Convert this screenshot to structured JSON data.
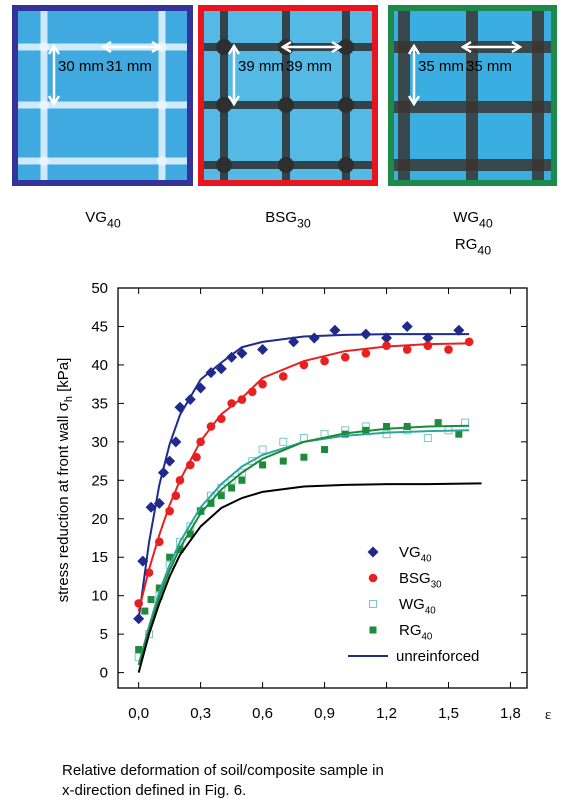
{
  "photos": [
    {
      "border_color": "#33339a",
      "background": "#3fa9e0",
      "strand_color": "#e8f4fb",
      "labels": [
        "30 mm",
        "31 mm"
      ],
      "caption": [
        {
          "base": "VG",
          "sub": "40"
        }
      ]
    },
    {
      "border_color": "#e8141e",
      "background": "#55b9e6",
      "strand_color": "#2e2e2e",
      "labels": [
        "39 mm",
        "39 mm"
      ],
      "caption": [
        {
          "base": "BSG",
          "sub": "30"
        }
      ]
    },
    {
      "border_color": "#1e8a4a",
      "background": "#3aaee0",
      "strand_color": "#3a3632",
      "labels": [
        "35 mm",
        "35 mm"
      ],
      "caption": [
        {
          "base": "WG",
          "sub": "40"
        },
        {
          "base": "RG",
          "sub": "40"
        }
      ]
    }
  ],
  "chart_data": {
    "type": "scatter",
    "x_label": "ε",
    "y_label": {
      "text": "stress reduction at front wall σ",
      "sub": "h",
      "after": " [kPa]"
    },
    "xlim": [
      -0.1,
      1.88
    ],
    "ylim": [
      -2,
      50
    ],
    "xticks": [
      {
        "value": 0,
        "label": "0,0"
      },
      {
        "value": 0.3,
        "label": "0,3"
      },
      {
        "value": 0.6,
        "label": "0,6"
      },
      {
        "value": 0.9,
        "label": "0,9"
      },
      {
        "value": 1.2,
        "label": "1,2"
      },
      {
        "value": 1.5,
        "label": "1,5"
      },
      {
        "value": 1.8,
        "label": "1,8"
      }
    ],
    "yticks": [
      0,
      5,
      10,
      15,
      20,
      25,
      30,
      35,
      40,
      45,
      50
    ],
    "series": [
      {
        "name": "VG",
        "subscript": "40",
        "marker": "diamond",
        "color": "#1f2a8c",
        "x": [
          0,
          0.02,
          0.06,
          0.1,
          0.12,
          0.15,
          0.18,
          0.2,
          0.25,
          0.3,
          0.35,
          0.4,
          0.45,
          0.5,
          0.6,
          0.75,
          0.85,
          0.95,
          1.1,
          1.2,
          1.3,
          1.4,
          1.55
        ],
        "values": [
          7,
          14.5,
          21.5,
          22,
          26,
          27.5,
          30,
          34.5,
          35.5,
          37,
          39,
          39.5,
          41,
          41.5,
          42,
          43,
          43.5,
          44.5,
          44,
          43.5,
          45,
          43.5,
          44.5
        ]
      },
      {
        "name": "BSG",
        "subscript": "30",
        "marker": "circle",
        "color": "#e82020",
        "x": [
          0,
          0.05,
          0.1,
          0.15,
          0.18,
          0.2,
          0.25,
          0.28,
          0.3,
          0.35,
          0.4,
          0.45,
          0.5,
          0.55,
          0.6,
          0.7,
          0.8,
          0.9,
          1.0,
          1.1,
          1.2,
          1.3,
          1.4,
          1.5,
          1.6
        ],
        "values": [
          9,
          13,
          17,
          21,
          23,
          25,
          27,
          28,
          30,
          32,
          33,
          35,
          35.5,
          36.5,
          37.5,
          38.5,
          40,
          40.5,
          41,
          41.5,
          42.5,
          42,
          42.5,
          42,
          43
        ]
      },
      {
        "name": "WG",
        "subscript": "40",
        "marker": "open-square",
        "color": "#7cc8c4",
        "x": [
          0,
          0.05,
          0.1,
          0.15,
          0.2,
          0.25,
          0.3,
          0.35,
          0.4,
          0.45,
          0.5,
          0.55,
          0.6,
          0.7,
          0.8,
          0.9,
          1.0,
          1.1,
          1.2,
          1.3,
          1.4,
          1.5,
          1.58
        ],
        "values": [
          2,
          5,
          10,
          14,
          17,
          19,
          21,
          23,
          24,
          25,
          26,
          27.5,
          29,
          30,
          30.5,
          31,
          31.5,
          32,
          31,
          31.5,
          30.5,
          31.5,
          32.5
        ]
      },
      {
        "name": "RG",
        "subscript": "40",
        "marker": "square",
        "color": "#1e8a3a",
        "x": [
          0,
          0.03,
          0.06,
          0.1,
          0.15,
          0.2,
          0.25,
          0.3,
          0.35,
          0.4,
          0.45,
          0.5,
          0.6,
          0.7,
          0.8,
          0.9,
          1.0,
          1.1,
          1.2,
          1.3,
          1.45,
          1.55
        ],
        "values": [
          3,
          8,
          9.5,
          11,
          15,
          16,
          18,
          21,
          22,
          23,
          24,
          25,
          27,
          27.5,
          28,
          29,
          31,
          31.5,
          32,
          32,
          32.5,
          31
        ]
      },
      {
        "marker": "line",
        "color": "#1f2a8c",
        "x": [
          0,
          0.05,
          0.1,
          0.15,
          0.2,
          0.3,
          0.4,
          0.5,
          0.6,
          0.8,
          1.0,
          1.2,
          1.4,
          1.6
        ],
        "values": [
          7,
          16.9,
          24.4,
          29.7,
          33.5,
          38.1,
          40.3,
          42.3,
          43,
          43.7,
          43.9,
          44,
          44,
          44
        ]
      },
      {
        "marker": "line",
        "color": "#e82020",
        "x": [
          0,
          0.05,
          0.1,
          0.15,
          0.2,
          0.3,
          0.4,
          0.5,
          0.6,
          0.8,
          1.0,
          1.2,
          1.4,
          1.6
        ],
        "values": [
          8,
          13.4,
          17.9,
          21.8,
          25,
          30.1,
          33.6,
          35.7,
          38.3,
          40.5,
          41.8,
          42.4,
          42.7,
          42.8
        ]
      },
      {
        "marker": "line",
        "color": "#2aa6a0",
        "x": [
          0,
          0.05,
          0.1,
          0.15,
          0.2,
          0.3,
          0.4,
          0.5,
          0.6,
          0.8,
          1.0,
          1.2,
          1.4,
          1.6
        ],
        "values": [
          1,
          6,
          10.5,
          14,
          17,
          21.5,
          24.5,
          26.8,
          28.3,
          30,
          30.8,
          31.2,
          31.4,
          31.5
        ]
      },
      {
        "marker": "line",
        "color": "#1e8a3a",
        "x": [
          0,
          0.05,
          0.1,
          0.15,
          0.2,
          0.3,
          0.4,
          0.5,
          0.6,
          0.8,
          1.0,
          1.2,
          1.4,
          1.6
        ],
        "values": [
          1,
          5.5,
          9.8,
          13.3,
          16.2,
          20.7,
          23.8,
          26,
          27.8,
          30,
          31.1,
          31.7,
          32,
          32.1
        ]
      },
      {
        "name": "unreinforced",
        "marker": "line",
        "color": "#000000",
        "legend_color": "#1f2a8c",
        "x": [
          0,
          0.05,
          0.1,
          0.15,
          0.2,
          0.3,
          0.4,
          0.5,
          0.6,
          0.8,
          1.0,
          1.2,
          1.4,
          1.66
        ],
        "values": [
          0,
          5,
          9,
          12.5,
          15.3,
          19,
          21.4,
          22.7,
          23.5,
          24.2,
          24.4,
          24.5,
          24.5,
          24.6
        ]
      }
    ],
    "caption": [
      "Relative deformation of soil/composite sample in",
      "x-direction defined in Fig. 6."
    ]
  }
}
